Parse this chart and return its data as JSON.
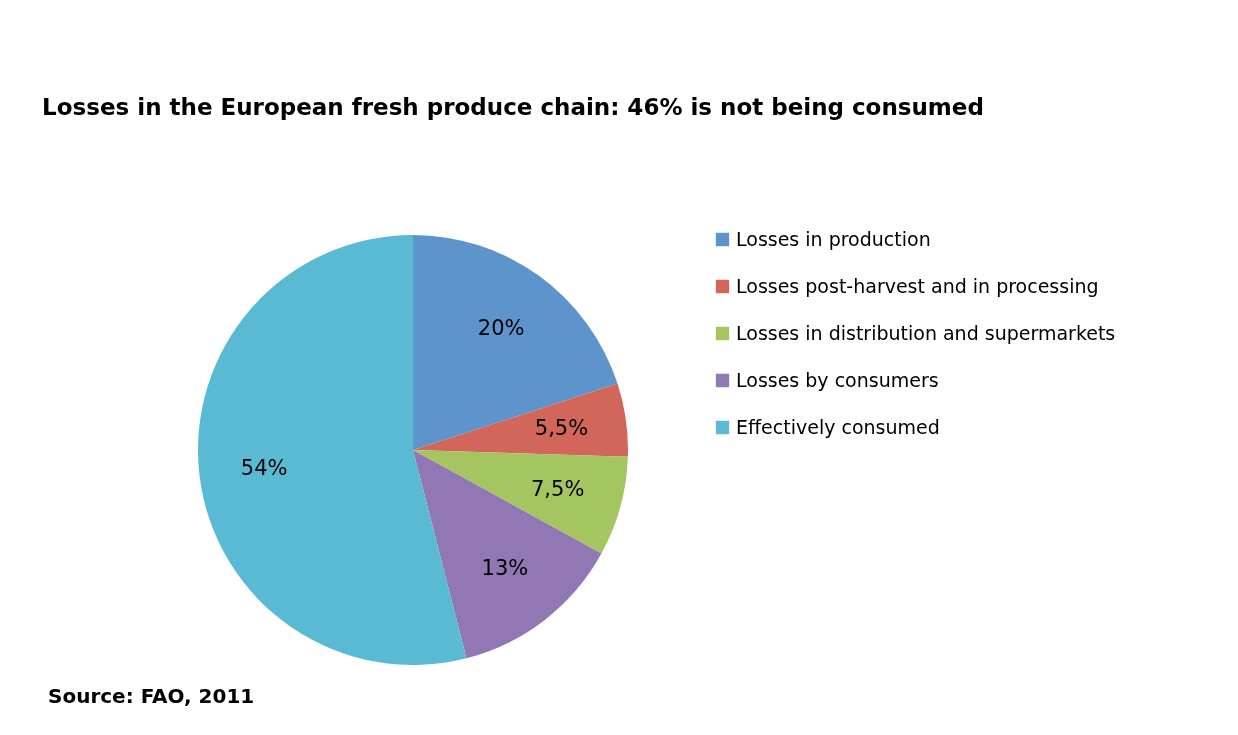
{
  "chart_data": {
    "type": "pie",
    "title": "Losses in the European fresh produce chain: 46% is not being consumed",
    "categories": [
      "Losses in production",
      "Losses post-harvest and in processing",
      "Losses in distribution and supermarkets",
      "Losses by consumers",
      "Effectively consumed"
    ],
    "values": [
      20,
      5.5,
      7.5,
      13,
      54
    ],
    "value_labels": [
      "20%",
      "5,5%",
      "7,5%",
      "13%",
      "54%"
    ],
    "colors": [
      "#5e94cc",
      "#d2665a",
      "#a5c560",
      "#9178b5",
      "#5bbad3"
    ],
    "legend": "right",
    "annotations": [
      "Source: FAO, 2011"
    ]
  }
}
